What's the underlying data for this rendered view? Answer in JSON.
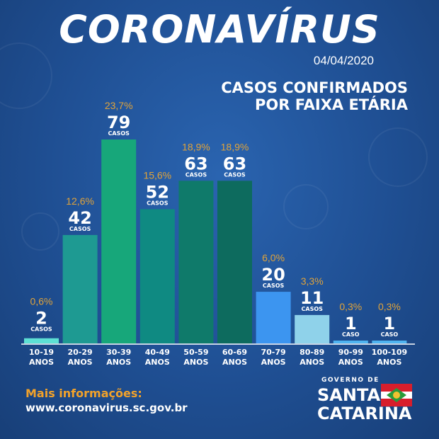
{
  "header": {
    "title": "CORONAVÍRUS",
    "date": "04/04/2020",
    "subtitle_line1": "CASOS CONFIRMADOS",
    "subtitle_line2": "POR FAIXA ETÁRIA"
  },
  "footer": {
    "info_label": "Mais informações:",
    "info_url": "www.coronavirus.sc.gov.br",
    "logo_governo": "GOVERNO DE",
    "logo_santa": "SANTA",
    "logo_catarina": "CATARINA"
  },
  "colors": {
    "percent": "#e0a33a",
    "axis": "#ffffff"
  },
  "chart_data": {
    "type": "bar",
    "title": "CASOS CONFIRMADOS POR FAIXA ETÁRIA",
    "categories": [
      [
        "10-19",
        "ANOS"
      ],
      [
        "20-29",
        "ANOS"
      ],
      [
        "30-39",
        "ANOS"
      ],
      [
        "40-49",
        "ANOS"
      ],
      [
        "50-59",
        "ANOS"
      ],
      [
        "60-69",
        "ANOS"
      ],
      [
        "70-79",
        "ANOS"
      ],
      [
        "80-89",
        "ANOS"
      ],
      [
        "90-99",
        "ANOS"
      ],
      [
        "100-109",
        "ANOS"
      ]
    ],
    "values": [
      2,
      42,
      79,
      52,
      63,
      63,
      20,
      11,
      1,
      1
    ],
    "value_labels": [
      "2",
      "42",
      "79",
      "52",
      "63",
      "63",
      "20",
      "11",
      "1",
      "1"
    ],
    "unit_labels": [
      "CASOS",
      "CASOS",
      "CASOS",
      "CASOS",
      "CASOS",
      "CASOS",
      "CASOS",
      "CASOS",
      "CASO",
      "CASO"
    ],
    "percent_labels": [
      "0,6%",
      "12,6%",
      "23,7%",
      "15,6%",
      "18,9%",
      "18,9%",
      "6,0%",
      "3,3%",
      "0,3%",
      "0,3%"
    ],
    "bar_colors": [
      "#5de0d4",
      "#1e9a92",
      "#17a77a",
      "#0f8a82",
      "#0f7a6a",
      "#0d6b5e",
      "#3c95f0",
      "#8fd2ea",
      "#4fb4f0",
      "#4fb4f0"
    ],
    "ylim": [
      0,
      79
    ],
    "grid": false,
    "legend": "none"
  }
}
